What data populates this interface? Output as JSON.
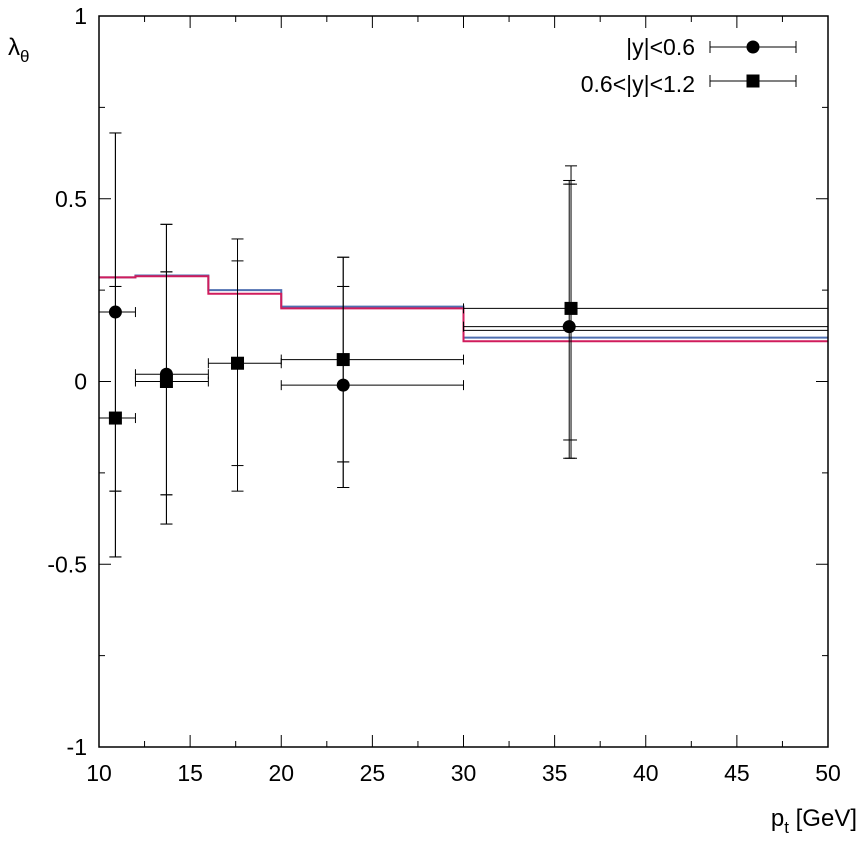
{
  "chart_data": {
    "type": "scatter",
    "title": "",
    "xlabel_main": "p",
    "xlabel_sub": "t",
    "xlabel_unit": " [GeV]",
    "ylabel_main": "λ",
    "ylabel_sub": "θ",
    "xlim": [
      10,
      50
    ],
    "ylim": [
      -1,
      1
    ],
    "x_ticks": [
      10,
      15,
      20,
      25,
      30,
      35,
      40,
      45,
      50
    ],
    "x_tick_labels": [
      "10",
      "15",
      "20",
      "25",
      "30",
      "35",
      "40",
      "45",
      "50"
    ],
    "y_ticks": [
      -1,
      -0.5,
      0,
      0.5,
      1
    ],
    "y_tick_labels": [
      "-1",
      "-0.5",
      "0",
      "0.5",
      "1"
    ],
    "legend_position": "top-right",
    "series": [
      {
        "name": "|y|<0.6",
        "marker": "circle",
        "points": [
          {
            "x": 10.9,
            "y": 0.19,
            "xlo": 10,
            "xhi": 12,
            "ylo_stat": -0.3,
            "yhi_stat": 0.26,
            "ylo_sys": -0.48,
            "yhi_sys": 0.68
          },
          {
            "x": 13.7,
            "y": 0.02,
            "xlo": 12,
            "xhi": 16,
            "ylo_stat": -0.31,
            "yhi_stat": 0.3,
            "ylo_sys": -0.39,
            "yhi_sys": 0.43
          },
          {
            "x": 23.4,
            "y": -0.01,
            "xlo": 20,
            "xhi": 30,
            "ylo_stat": -0.22,
            "yhi_stat": 0.26,
            "ylo_sys": -0.29,
            "yhi_sys": 0.34
          },
          {
            "x": 35.8,
            "y": 0.15,
            "xlo": 30,
            "xhi": 50,
            "ylo_stat": -0.16,
            "yhi_stat": 0.54,
            "ylo_sys": -0.21,
            "yhi_sys": 0.55
          }
        ]
      },
      {
        "name": "0.6<|y|<1.2",
        "marker": "square",
        "points": [
          {
            "x": 10.9,
            "y": -0.1,
            "xlo": 10,
            "xhi": 12,
            "ylo_stat": -0.3,
            "yhi_stat": 0.26,
            "ylo_sys": -0.48,
            "yhi_sys": 0.68
          },
          {
            "x": 13.7,
            "y": 0.0,
            "xlo": 12,
            "xhi": 16,
            "ylo_stat": -0.31,
            "yhi_stat": 0.3,
            "ylo_sys": -0.39,
            "yhi_sys": 0.43
          },
          {
            "x": 17.6,
            "y": 0.05,
            "xlo": 16,
            "xhi": 20,
            "ylo_stat": -0.23,
            "yhi_stat": 0.33,
            "ylo_sys": -0.3,
            "yhi_sys": 0.39
          },
          {
            "x": 23.4,
            "y": 0.06,
            "xlo": 20,
            "xhi": 30,
            "ylo_stat": -0.22,
            "yhi_stat": 0.26,
            "ylo_sys": -0.29,
            "yhi_sys": 0.34
          },
          {
            "x": 35.9,
            "y": 0.2,
            "xlo": 30,
            "xhi": 50,
            "ylo_stat": -0.16,
            "yhi_stat": 0.54,
            "ylo_sys": -0.21,
            "yhi_sys": 0.59
          }
        ]
      }
    ],
    "model_curves": [
      {
        "name": "theory-blue",
        "color": "#4f6fb0",
        "edges": [
          10,
          12,
          16,
          20,
          30,
          50
        ],
        "values": [
          0.285,
          0.29,
          0.25,
          0.205,
          0.12
        ]
      },
      {
        "name": "theory-red",
        "color": "#d01c5c",
        "edges": [
          10,
          12,
          16,
          20,
          30,
          50
        ],
        "values": [
          0.285,
          0.288,
          0.24,
          0.2,
          0.11
        ]
      }
    ],
    "extra_bin_lines": [
      {
        "y": 0.14,
        "xlo": 30,
        "xhi": 50
      }
    ]
  }
}
